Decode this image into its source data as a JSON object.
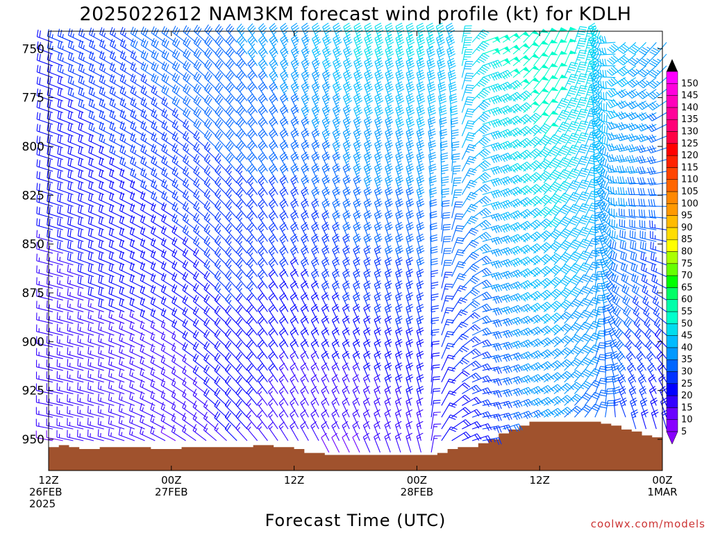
{
  "chart_data": {
    "type": "wind-barb-profile",
    "title": "2025022612 NAM3KM forecast wind profile (kt) for KDLH",
    "xlabel": "Forecast Time (UTC)",
    "credit": "coolwx.com/models",
    "credit_color": "#cc3333",
    "terrain_color": "#a0522d",
    "x_range_hours": [
      0,
      60
    ],
    "y_range_hpa": [
      741,
      966
    ],
    "y_ticks": [
      750,
      775,
      800,
      825,
      850,
      875,
      900,
      925,
      950
    ],
    "x_ticks": [
      {
        "hour": 0,
        "label1": "12Z",
        "label2": "26FEB",
        "label3": "2025"
      },
      {
        "hour": 12,
        "label1": "00Z",
        "label2": "27FEB",
        "label3": ""
      },
      {
        "hour": 24,
        "label1": "12Z",
        "label2": "",
        "label3": ""
      },
      {
        "hour": 36,
        "label1": "00Z",
        "label2": "28FEB",
        "label3": ""
      },
      {
        "hour": 48,
        "label1": "12Z",
        "label2": "",
        "label3": ""
      },
      {
        "hour": 60,
        "label1": "00Z",
        "label2": "1MAR",
        "label3": ""
      }
    ],
    "surface_pressure": [
      [
        0,
        954
      ],
      [
        1,
        953
      ],
      [
        2,
        954
      ],
      [
        3,
        955
      ],
      [
        5,
        954
      ],
      [
        10,
        955
      ],
      [
        13,
        954
      ],
      [
        18,
        954
      ],
      [
        20,
        953
      ],
      [
        22,
        954
      ],
      [
        24,
        955
      ],
      [
        25,
        957
      ],
      [
        26,
        957
      ],
      [
        27,
        958
      ],
      [
        35,
        958
      ],
      [
        38,
        957
      ],
      [
        39,
        955
      ],
      [
        40,
        954
      ],
      [
        42,
        952
      ],
      [
        43,
        950
      ],
      [
        44,
        947
      ],
      [
        45,
        945
      ],
      [
        46,
        943
      ],
      [
        47,
        941
      ],
      [
        50,
        941
      ],
      [
        53,
        941
      ],
      [
        54,
        942
      ],
      [
        55,
        943
      ],
      [
        56,
        945
      ],
      [
        57,
        946
      ],
      [
        58,
        948
      ],
      [
        59,
        949
      ],
      [
        60,
        950
      ]
    ],
    "wind_by_time": [
      {
        "hour": 0,
        "dir_top": 290,
        "dir_bot": 280,
        "spd_top": 22,
        "spd_bot": 12
      },
      {
        "hour": 6,
        "dir_top": 300,
        "dir_bot": 285,
        "spd_top": 26,
        "spd_bot": 13
      },
      {
        "hour": 12,
        "dir_top": 305,
        "dir_bot": 300,
        "spd_top": 30,
        "spd_bot": 12
      },
      {
        "hour": 18,
        "dir_top": 320,
        "dir_bot": 315,
        "spd_top": 32,
        "spd_bot": 18
      },
      {
        "hour": 24,
        "dir_top": 335,
        "dir_bot": 330,
        "spd_top": 36,
        "spd_bot": 12
      },
      {
        "hour": 30,
        "dir_top": 340,
        "dir_bot": 335,
        "spd_top": 44,
        "spd_bot": 12
      },
      {
        "hour": 36,
        "dir_top": 345,
        "dir_bot": 345,
        "spd_top": 44,
        "spd_bot": 15
      },
      {
        "hour": 39,
        "dir_top": 340,
        "dir_bot": 60,
        "spd_top": 42,
        "spd_bot": 18
      },
      {
        "hour": 42,
        "dir_top": 70,
        "dir_bot": 80,
        "spd_top": 48,
        "spd_bot": 22
      },
      {
        "hour": 45,
        "dir_top": 50,
        "dir_bot": 70,
        "spd_top": 50,
        "spd_bot": 30
      },
      {
        "hour": 48,
        "dir_top": 30,
        "dir_bot": 60,
        "spd_top": 52,
        "spd_bot": 32
      },
      {
        "hour": 52,
        "dir_top": 15,
        "dir_bot": 40,
        "spd_top": 45,
        "spd_bot": 30
      },
      {
        "hour": 56,
        "dir_top": 230,
        "dir_bot": 350,
        "spd_top": 40,
        "spd_bot": 25
      },
      {
        "hour": 60,
        "dir_top": 220,
        "dir_bot": 350,
        "spd_top": 35,
        "spd_bot": 18
      }
    ],
    "colorbar": {
      "min": 5,
      "max": 150,
      "step": 5,
      "labels": [
        "5",
        "10",
        "15",
        "20",
        "25",
        "30",
        "35",
        "40",
        "45",
        "50",
        "55",
        "60",
        "65",
        "70",
        "75",
        "80",
        "85",
        "90",
        "95",
        "100",
        "105",
        "110",
        "115",
        "120",
        "125",
        "130",
        "135",
        "140",
        "145",
        "150"
      ],
      "colors": [
        "#8800ff",
        "#6a00ff",
        "#3300ff",
        "#0000ff",
        "#0033ff",
        "#0066ff",
        "#0099ff",
        "#00bbff",
        "#00ddee",
        "#00ffcc",
        "#00ffaa",
        "#00ff66",
        "#00ff00",
        "#66ff00",
        "#aaff00",
        "#ffff00",
        "#ffdd00",
        "#ffbb00",
        "#ff9900",
        "#ff8800",
        "#ff6600",
        "#ff4400",
        "#ff2200",
        "#ff0000",
        "#ff0044",
        "#ff0077",
        "#ff0099",
        "#ff00bb",
        "#ff00dd",
        "#ff00ff"
      ]
    }
  }
}
